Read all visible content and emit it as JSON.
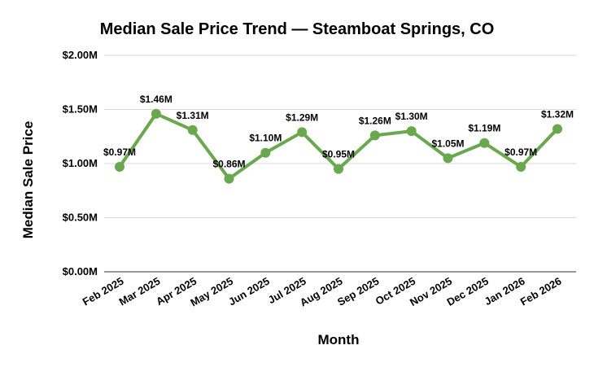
{
  "chart_data": {
    "type": "line",
    "title": "Median Sale Price Trend — Steamboat Springs, CO",
    "xlabel": "Month",
    "ylabel": "Median Sale Price",
    "categories": [
      "Feb 2025",
      "Mar 2025",
      "Apr 2025",
      "May 2025",
      "Jun 2025",
      "Jul 2025",
      "Aug 2025",
      "Sep 2025",
      "Oct 2025",
      "Nov 2025",
      "Dec 2025",
      "Jan 2026",
      "Feb 2026"
    ],
    "series": [
      {
        "values": [
          0.97,
          1.46,
          1.31,
          0.86,
          1.1,
          1.29,
          0.95,
          1.26,
          1.3,
          1.05,
          1.19,
          0.97,
          1.32
        ],
        "labels": [
          "$0.97M",
          "$1.46M",
          "$1.31M",
          "$0.86M",
          "$1.10M",
          "$1.29M",
          "$0.95M",
          "$1.26M",
          "$1.30M",
          "$1.05M",
          "$1.19M",
          "$0.97M",
          "$1.32M"
        ],
        "color": "#6aa84f"
      }
    ],
    "yticks": [
      {
        "value": 0,
        "label": "$0.00M"
      },
      {
        "value": 0.5,
        "label": "$0.50M"
      },
      {
        "value": 1.0,
        "label": "$1.00M"
      },
      {
        "value": 1.5,
        "label": "$1.50M"
      },
      {
        "value": 2.0,
        "label": "$2.00M"
      }
    ],
    "ylim": [
      0,
      2.0
    ],
    "grid": true,
    "legend": "none"
  }
}
